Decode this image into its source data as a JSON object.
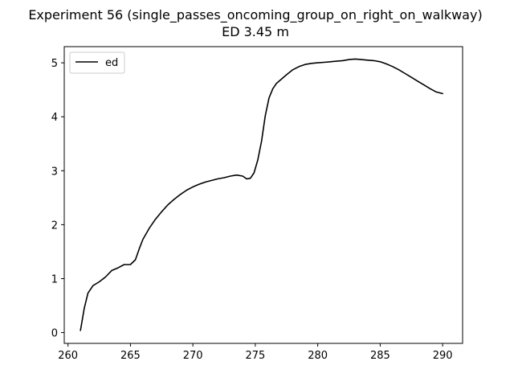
{
  "chart_data": {
    "type": "line",
    "title": "Experiment 56 (single_passes_oncoming_group_on_right_on_walkway)",
    "subtitle": "ED 3.45 m",
    "xlabel": "",
    "ylabel": "",
    "xlim": [
      259.7,
      291.6
    ],
    "ylim": [
      -0.2,
      5.3
    ],
    "xticks": [
      260,
      265,
      270,
      275,
      280,
      285,
      290
    ],
    "yticks": [
      0,
      1,
      2,
      3,
      4,
      5
    ],
    "grid": false,
    "legend": {
      "position": "top-left",
      "entries": [
        "ed"
      ]
    },
    "series": [
      {
        "name": "ed",
        "color": "#000000",
        "x": [
          261.0,
          261.3,
          261.6,
          262.0,
          262.5,
          263.0,
          263.5,
          264.0,
          264.5,
          265.0,
          265.4,
          265.7,
          266.0,
          266.5,
          267.0,
          267.5,
          268.0,
          268.5,
          269.0,
          269.5,
          270.0,
          270.5,
          271.0,
          271.5,
          272.0,
          272.5,
          273.0,
          273.5,
          274.0,
          274.3,
          274.6,
          274.9,
          275.2,
          275.5,
          275.8,
          276.1,
          276.4,
          276.7,
          277.0,
          277.5,
          278.0,
          278.5,
          279.0,
          279.5,
          280.0,
          280.5,
          281.0,
          281.5,
          282.0,
          282.5,
          283.0,
          283.5,
          284.0,
          284.5,
          285.0,
          285.5,
          286.0,
          286.5,
          287.0,
          287.5,
          288.0,
          288.5,
          289.0,
          289.5,
          290.0
        ],
        "y": [
          0.04,
          0.45,
          0.73,
          0.87,
          0.94,
          1.03,
          1.15,
          1.2,
          1.26,
          1.26,
          1.35,
          1.55,
          1.73,
          1.93,
          2.1,
          2.24,
          2.37,
          2.47,
          2.56,
          2.64,
          2.7,
          2.75,
          2.79,
          2.82,
          2.85,
          2.87,
          2.9,
          2.92,
          2.9,
          2.85,
          2.86,
          2.96,
          3.2,
          3.55,
          4.02,
          4.35,
          4.52,
          4.62,
          4.68,
          4.78,
          4.87,
          4.93,
          4.97,
          4.99,
          5.0,
          5.01,
          5.02,
          5.03,
          5.04,
          5.06,
          5.07,
          5.06,
          5.05,
          5.04,
          5.02,
          4.98,
          4.93,
          4.87,
          4.8,
          4.73,
          4.66,
          4.59,
          4.52,
          4.46,
          4.43
        ]
      }
    ]
  }
}
